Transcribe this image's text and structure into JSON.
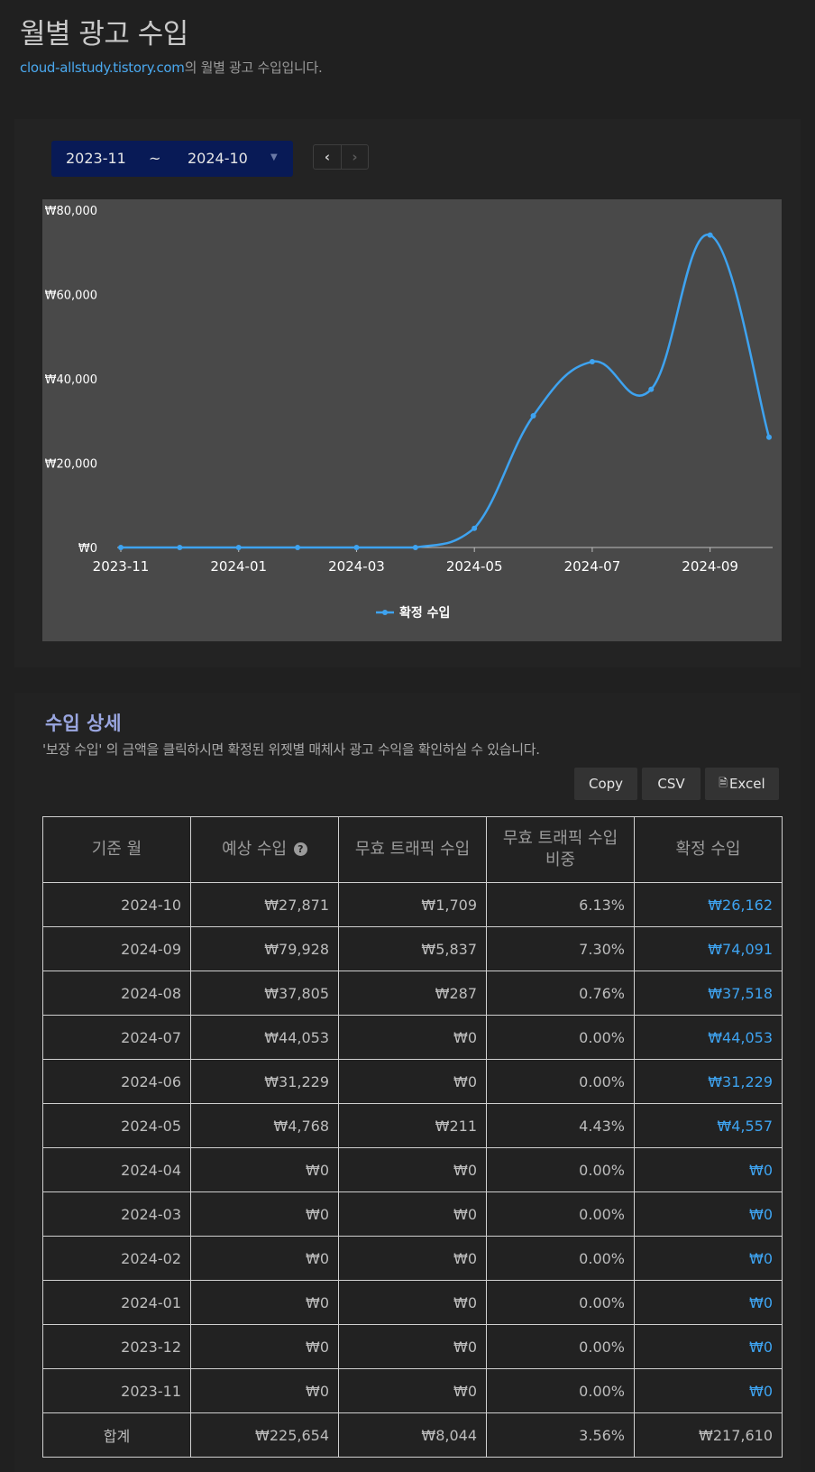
{
  "header": {
    "title": "월별 광고 수입",
    "site_link": "cloud-allstudy.tistory.com",
    "subtitle_suffix": "의 월별 광고 수입입니다."
  },
  "range": {
    "from": "2023-11",
    "separator": "~",
    "to": "2024-10"
  },
  "nav": {
    "prev_icon": "chevron-left-icon",
    "next_icon": "chevron-right-icon"
  },
  "chart_data": {
    "type": "line",
    "x": [
      "2023-11",
      "2023-12",
      "2024-01",
      "2024-02",
      "2024-03",
      "2024-04",
      "2024-05",
      "2024-06",
      "2024-07",
      "2024-08",
      "2024-09",
      "2024-10"
    ],
    "x_tick_labels": [
      "2023-11",
      "2024-01",
      "2024-03",
      "2024-05",
      "2024-07",
      "2024-09"
    ],
    "y_tick_labels": [
      "₩0",
      "₩20,000",
      "₩40,000",
      "₩60,000",
      "₩80,000"
    ],
    "ylim": [
      0,
      80000
    ],
    "series": [
      {
        "name": "확정 수입",
        "color": "#3ea3f0",
        "values": [
          0,
          0,
          0,
          0,
          0,
          0,
          4557,
          31229,
          44053,
          37518,
          74091,
          26162
        ]
      }
    ],
    "legend_position": "bottom",
    "smooth": true
  },
  "detail": {
    "title": "수입 상세",
    "description": "'보장 수입' 의 금액을 클릭하시면 확정된 위젯별 매체사 광고 수익을 확인하실 수 있습니다.",
    "buttons": {
      "copy": "Copy",
      "csv": "CSV",
      "excel": "Excel"
    },
    "columns": [
      "기준 월",
      "예상 수입",
      "무효 트래픽 수입",
      "무효 트래픽 수입 비중",
      "확정 수입"
    ],
    "rows": [
      [
        "2024-10",
        "₩27,871",
        "₩1,709",
        "6.13%",
        "₩26,162"
      ],
      [
        "2024-09",
        "₩79,928",
        "₩5,837",
        "7.30%",
        "₩74,091"
      ],
      [
        "2024-08",
        "₩37,805",
        "₩287",
        "0.76%",
        "₩37,518"
      ],
      [
        "2024-07",
        "₩44,053",
        "₩0",
        "0.00%",
        "₩44,053"
      ],
      [
        "2024-06",
        "₩31,229",
        "₩0",
        "0.00%",
        "₩31,229"
      ],
      [
        "2024-05",
        "₩4,768",
        "₩211",
        "4.43%",
        "₩4,557"
      ],
      [
        "2024-04",
        "₩0",
        "₩0",
        "0.00%",
        "₩0"
      ],
      [
        "2024-03",
        "₩0",
        "₩0",
        "0.00%",
        "₩0"
      ],
      [
        "2024-02",
        "₩0",
        "₩0",
        "0.00%",
        "₩0"
      ],
      [
        "2024-01",
        "₩0",
        "₩0",
        "0.00%",
        "₩0"
      ],
      [
        "2023-12",
        "₩0",
        "₩0",
        "0.00%",
        "₩0"
      ],
      [
        "2023-11",
        "₩0",
        "₩0",
        "0.00%",
        "₩0"
      ]
    ],
    "total": [
      "합계",
      "₩225,654",
      "₩8,044",
      "3.56%",
      "₩217,610"
    ]
  }
}
